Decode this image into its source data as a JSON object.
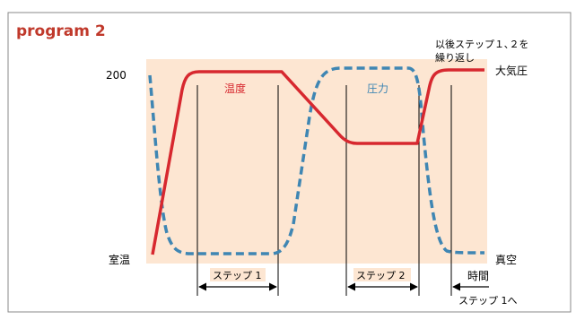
{
  "heading": "program 2",
  "labels": {
    "y_top": "200",
    "y_bottom": "室温",
    "right_top": "大気圧",
    "right_bottom": "真空",
    "temperature": "温度",
    "pressure": "圧力",
    "repeat_note_line1": "以後ステップ１､２を",
    "repeat_note_line2": "繰り返し",
    "time": "時間",
    "step1": "ステップ 1",
    "step2": "ステップ 2",
    "step1_return": "ステップ 1へ"
  },
  "colors": {
    "heading": "#c0392b",
    "panel_bg": "#fde6d2",
    "temperature_line": "#d7282f",
    "pressure_line": "#3f86b3",
    "temperature_text": "#d7282f",
    "pressure_text": "#3f86b3",
    "frame": "#7f7f7f"
  }
}
